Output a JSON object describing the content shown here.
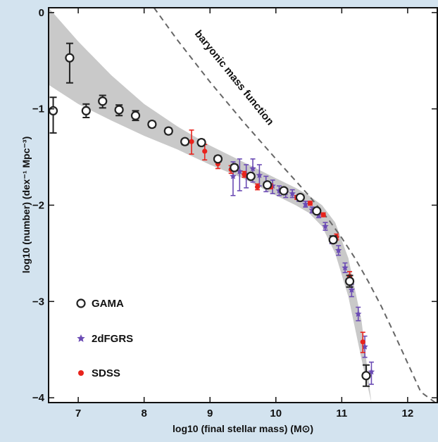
{
  "chart_data": {
    "type": "scatter",
    "xlabel": "log10 (final stellar mass) (M⊙)",
    "ylabel": "log10 (number) (dex⁻¹ Mpc⁻³)",
    "xlim": [
      6.55,
      12.45
    ],
    "ylim": [
      -4.05,
      0.05
    ],
    "x_ticks": [
      "7",
      "8",
      "9",
      "10",
      "11",
      "12"
    ],
    "y_ticks": [
      "0",
      "−1",
      "−2",
      "−3",
      "−4"
    ],
    "grid": false,
    "legend_position": "bottom-left",
    "annotation": "baryonic mass function",
    "colors": {
      "gama": "#222222",
      "twodf": "#6b4bb4",
      "sdss": "#e8231c",
      "band": "#c9c9c9",
      "dashed": "#666666"
    },
    "band": {
      "x": [
        6.55,
        7.0,
        7.5,
        8.0,
        8.5,
        9.0,
        9.5,
        10.0,
        10.3,
        10.5,
        10.7,
        10.9,
        11.1,
        11.3,
        11.45
      ],
      "upper": [
        0.05,
        -0.3,
        -0.65,
        -0.95,
        -1.18,
        -1.38,
        -1.55,
        -1.72,
        -1.82,
        -1.9,
        -2.0,
        -2.18,
        -2.55,
        -3.2,
        -4.05
      ],
      "lower": [
        -0.75,
        -0.95,
        -1.12,
        -1.28,
        -1.42,
        -1.58,
        -1.72,
        -1.9,
        -2.0,
        -2.08,
        -2.22,
        -2.5,
        -2.95,
        -3.6,
        -4.05
      ]
    },
    "series": [
      {
        "name": "GAMA",
        "points": [
          {
            "x": 6.62,
            "y": -1.02,
            "lo": -1.25,
            "hi": -0.88
          },
          {
            "x": 6.87,
            "y": -0.47,
            "lo": -0.73,
            "hi": -0.32
          },
          {
            "x": 7.12,
            "y": -1.02,
            "lo": -1.09,
            "hi": -0.95
          },
          {
            "x": 7.37,
            "y": -0.92,
            "lo": -0.99,
            "hi": -0.86
          },
          {
            "x": 7.62,
            "y": -1.01,
            "lo": -1.07,
            "hi": -0.96
          },
          {
            "x": 7.87,
            "y": -1.07,
            "lo": -1.12,
            "hi": -1.02
          },
          {
            "x": 8.12,
            "y": -1.16,
            "lo": -1.19,
            "hi": -1.13
          },
          {
            "x": 8.37,
            "y": -1.23,
            "lo": -1.26,
            "hi": -1.2
          },
          {
            "x": 8.62,
            "y": -1.34,
            "lo": -1.37,
            "hi": -1.32
          },
          {
            "x": 8.87,
            "y": -1.35,
            "lo": -1.38,
            "hi": -1.32
          },
          {
            "x": 9.12,
            "y": -1.52,
            "lo": -1.55,
            "hi": -1.49
          },
          {
            "x": 9.37,
            "y": -1.61,
            "lo": -1.63,
            "hi": -1.58
          },
          {
            "x": 9.62,
            "y": -1.7,
            "lo": -1.72,
            "hi": -1.68
          },
          {
            "x": 9.87,
            "y": -1.79,
            "lo": -1.81,
            "hi": -1.77
          },
          {
            "x": 10.12,
            "y": -1.85,
            "lo": -1.87,
            "hi": -1.83
          },
          {
            "x": 10.37,
            "y": -1.92,
            "lo": -1.94,
            "hi": -1.9
          },
          {
            "x": 10.62,
            "y": -2.06,
            "lo": -2.08,
            "hi": -2.04
          },
          {
            "x": 10.87,
            "y": -2.36,
            "lo": -2.39,
            "hi": -2.32
          },
          {
            "x": 11.12,
            "y": -2.79,
            "lo": -2.85,
            "hi": -2.73
          },
          {
            "x": 11.37,
            "y": -3.77,
            "lo": -3.88,
            "hi": -3.66
          }
        ]
      },
      {
        "name": "2dFGRS",
        "points": [
          {
            "x": 9.35,
            "y": -1.7,
            "lo": -1.9,
            "hi": -1.55
          },
          {
            "x": 9.45,
            "y": -1.65,
            "lo": -1.85,
            "hi": -1.52
          },
          {
            "x": 9.55,
            "y": -1.68,
            "lo": -1.82,
            "hi": -1.58
          },
          {
            "x": 9.65,
            "y": -1.62,
            "lo": -1.76,
            "hi": -1.52
          },
          {
            "x": 9.75,
            "y": -1.69,
            "lo": -1.8,
            "hi": -1.58
          },
          {
            "x": 9.85,
            "y": -1.77,
            "lo": -1.86,
            "hi": -1.7
          },
          {
            "x": 9.95,
            "y": -1.8,
            "lo": -1.88,
            "hi": -1.74
          },
          {
            "x": 10.05,
            "y": -1.85,
            "lo": -1.9,
            "hi": -1.8
          },
          {
            "x": 10.15,
            "y": -1.87,
            "lo": -1.92,
            "hi": -1.83
          },
          {
            "x": 10.25,
            "y": -1.88,
            "lo": -1.92,
            "hi": -1.84
          },
          {
            "x": 10.35,
            "y": -1.93,
            "lo": -1.96,
            "hi": -1.89
          },
          {
            "x": 10.45,
            "y": -1.99,
            "lo": -2.02,
            "hi": -1.96
          },
          {
            "x": 10.55,
            "y": -2.05,
            "lo": -2.08,
            "hi": -2.02
          },
          {
            "x": 10.65,
            "y": -2.1,
            "lo": -2.13,
            "hi": -2.07
          },
          {
            "x": 10.75,
            "y": -2.22,
            "lo": -2.26,
            "hi": -2.18
          },
          {
            "x": 10.85,
            "y": -2.36,
            "lo": -2.4,
            "hi": -2.32
          },
          {
            "x": 10.95,
            "y": -2.47,
            "lo": -2.52,
            "hi": -2.42
          },
          {
            "x": 11.05,
            "y": -2.65,
            "lo": -2.7,
            "hi": -2.6
          },
          {
            "x": 11.15,
            "y": -2.88,
            "lo": -2.95,
            "hi": -2.82
          },
          {
            "x": 11.25,
            "y": -3.13,
            "lo": -3.2,
            "hi": -3.06
          },
          {
            "x": 11.35,
            "y": -3.47,
            "lo": -3.58,
            "hi": -3.36
          },
          {
            "x": 11.45,
            "y": -3.73,
            "lo": -3.86,
            "hi": -3.63
          }
        ]
      },
      {
        "name": "SDSS",
        "points": [
          {
            "x": 8.72,
            "y": -1.34,
            "lo": -1.47,
            "hi": -1.22
          },
          {
            "x": 8.92,
            "y": -1.44,
            "lo": -1.53,
            "hi": -1.37
          },
          {
            "x": 9.12,
            "y": -1.57,
            "lo": -1.62,
            "hi": -1.52
          },
          {
            "x": 9.32,
            "y": -1.63,
            "lo": -1.67,
            "hi": -1.59
          },
          {
            "x": 9.52,
            "y": -1.68,
            "lo": -1.71,
            "hi": -1.65
          },
          {
            "x": 9.72,
            "y": -1.81,
            "lo": -1.84,
            "hi": -1.78
          },
          {
            "x": 9.92,
            "y": -1.81,
            "lo": -1.83,
            "hi": -1.78
          },
          {
            "x": 10.12,
            "y": -1.86,
            "lo": -1.88,
            "hi": -1.84
          },
          {
            "x": 10.32,
            "y": -1.92,
            "lo": -1.94,
            "hi": -1.9
          },
          {
            "x": 10.52,
            "y": -1.98,
            "lo": -2.0,
            "hi": -1.96
          },
          {
            "x": 10.72,
            "y": -2.1,
            "lo": -2.12,
            "hi": -2.08
          },
          {
            "x": 10.92,
            "y": -2.33,
            "lo": -2.36,
            "hi": -2.3
          },
          {
            "x": 11.12,
            "y": -2.74,
            "lo": -2.8,
            "hi": -2.69
          },
          {
            "x": 11.32,
            "y": -3.42,
            "lo": -3.53,
            "hi": -3.32
          }
        ]
      }
    ],
    "baryonic_curve": {
      "x": [
        8.15,
        8.5,
        9.0,
        9.5,
        10.0,
        10.5,
        10.8,
        11.0,
        11.2,
        11.4,
        11.6,
        11.8,
        12.0,
        12.2,
        12.42
      ],
      "y": [
        0.05,
        -0.28,
        -0.72,
        -1.13,
        -1.52,
        -1.9,
        -2.15,
        -2.34,
        -2.55,
        -2.79,
        -3.05,
        -3.34,
        -3.64,
        -3.94,
        -4.05
      ]
    }
  }
}
